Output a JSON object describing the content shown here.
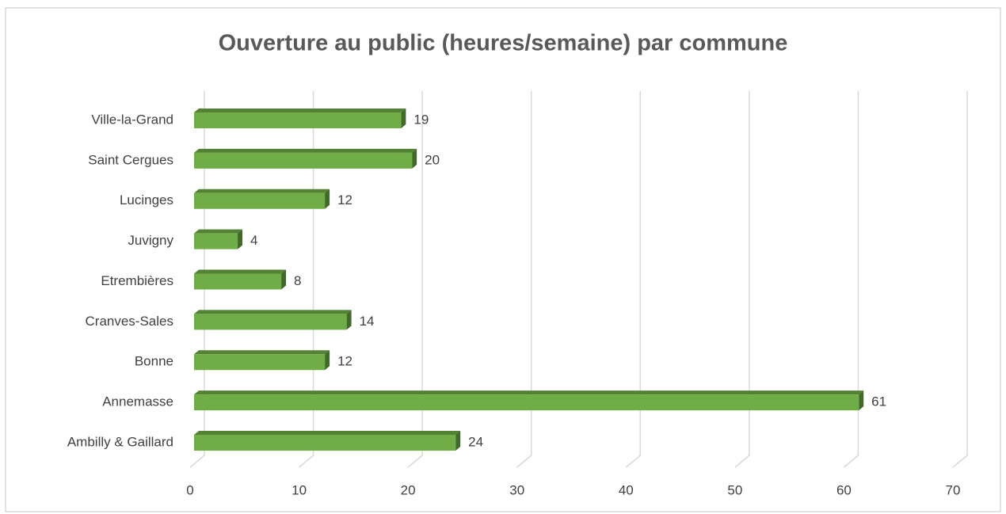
{
  "chart_data": {
    "type": "bar",
    "orientation": "horizontal",
    "title": "Ouverture au public (heures/semaine) par commune",
    "categories": [
      "Ambilly & Gaillard",
      "Annemasse",
      "Bonne",
      "Cranves-Sales",
      "Etrembières",
      "Juvigny",
      "Lucinges",
      "Saint Cergues",
      "Ville-la-Grand"
    ],
    "values": [
      24,
      61,
      12,
      14,
      8,
      4,
      12,
      20,
      19
    ],
    "color": "#70ad47",
    "xlim": [
      0,
      70
    ],
    "xticks": [
      0,
      10,
      20,
      30,
      40,
      50,
      60,
      70
    ],
    "grid": true
  }
}
